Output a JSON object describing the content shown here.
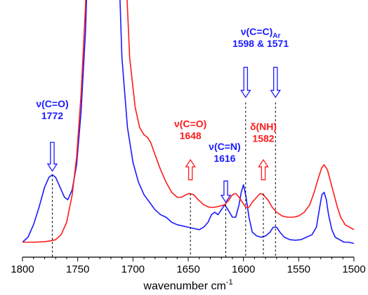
{
  "chart_data": {
    "type": "line",
    "title": "",
    "xlabel": "wavenumber cm",
    "xlabel_superscript": "-1",
    "ylabel": "",
    "xlim": [
      1800,
      1500
    ],
    "x_reversed": true,
    "y_axis_visible": false,
    "grid": false,
    "x_ticks": [
      1800,
      1750,
      1700,
      1650,
      1600,
      1550,
      1500
    ],
    "colors": {
      "blue": "#1a1aff",
      "red": "#ff1a1a",
      "axis": "#000000",
      "guide": "#000000"
    },
    "series": [
      {
        "color": "#1a1aff",
        "points": [
          [
            1800,
            0.06
          ],
          [
            1795,
            0.08
          ],
          [
            1790,
            0.13
          ],
          [
            1785,
            0.2
          ],
          [
            1780,
            0.28
          ],
          [
            1776,
            0.32
          ],
          [
            1773,
            0.33
          ],
          [
            1770,
            0.32
          ],
          [
            1766,
            0.28
          ],
          [
            1762,
            0.24
          ],
          [
            1759,
            0.23
          ],
          [
            1755,
            0.27
          ],
          [
            1751,
            0.37
          ],
          [
            1747,
            0.58
          ],
          [
            1743,
            0.9
          ],
          [
            1740,
            1.3
          ],
          [
            1738,
            1.8
          ],
          [
            1737,
            2.2
          ],
          [
            1737.6,
            3.0
          ],
          [
            1715.4,
            3.0
          ],
          [
            1715,
            2.1
          ],
          [
            1713,
            1.2
          ],
          [
            1710,
            0.8
          ],
          [
            1705,
            0.52
          ],
          [
            1700,
            0.38
          ],
          [
            1695,
            0.3
          ],
          [
            1690,
            0.25
          ],
          [
            1685,
            0.22
          ],
          [
            1680,
            0.19
          ],
          [
            1675,
            0.17
          ],
          [
            1670,
            0.16
          ],
          [
            1665,
            0.14
          ],
          [
            1660,
            0.13
          ],
          [
            1655,
            0.125
          ],
          [
            1650,
            0.12
          ],
          [
            1645,
            0.115
          ],
          [
            1640,
            0.11
          ],
          [
            1636,
            0.12
          ],
          [
            1632,
            0.14
          ],
          [
            1629,
            0.17
          ],
          [
            1626,
            0.18
          ],
          [
            1623,
            0.17
          ],
          [
            1620,
            0.19
          ],
          [
            1617,
            0.21
          ],
          [
            1614,
            0.19
          ],
          [
            1610,
            0.16
          ],
          [
            1607,
            0.16
          ],
          [
            1604,
            0.21
          ],
          [
            1602,
            0.26
          ],
          [
            1600,
            0.29
          ],
          [
            1598,
            0.25
          ],
          [
            1595,
            0.16
          ],
          [
            1592,
            0.1
          ],
          [
            1588,
            0.085
          ],
          [
            1584,
            0.08
          ],
          [
            1580,
            0.085
          ],
          [
            1576,
            0.1
          ],
          [
            1573,
            0.12
          ],
          [
            1570,
            0.12
          ],
          [
            1567,
            0.1
          ],
          [
            1563,
            0.08
          ],
          [
            1558,
            0.07
          ],
          [
            1553,
            0.068
          ],
          [
            1548,
            0.07
          ],
          [
            1543,
            0.08
          ],
          [
            1538,
            0.09
          ],
          [
            1534,
            0.12
          ],
          [
            1531,
            0.2
          ],
          [
            1529,
            0.25
          ],
          [
            1527,
            0.26
          ],
          [
            1525,
            0.23
          ],
          [
            1523,
            0.17
          ],
          [
            1520,
            0.11
          ],
          [
            1517,
            0.08
          ],
          [
            1513,
            0.07
          ],
          [
            1509,
            0.06
          ],
          [
            1505,
            0.06
          ],
          [
            1500,
            0.055
          ]
        ]
      },
      {
        "color": "#ff1a1a",
        "points": [
          [
            1800,
            0.06
          ],
          [
            1790,
            0.06
          ],
          [
            1780,
            0.062
          ],
          [
            1775,
            0.065
          ],
          [
            1770,
            0.07
          ],
          [
            1765,
            0.09
          ],
          [
            1760,
            0.14
          ],
          [
            1755,
            0.25
          ],
          [
            1751,
            0.4
          ],
          [
            1747,
            0.65
          ],
          [
            1743,
            1.0
          ],
          [
            1740,
            1.45
          ],
          [
            1738,
            1.9
          ],
          [
            1736,
            2.5
          ],
          [
            1735.5,
            3.0
          ],
          [
            1712.8,
            3.0
          ],
          [
            1712,
            2.5
          ],
          [
            1710,
            1.8
          ],
          [
            1707,
            1.2
          ],
          [
            1703,
            0.8
          ],
          [
            1698,
            0.6
          ],
          [
            1694,
            0.52
          ],
          [
            1690,
            0.49
          ],
          [
            1687,
            0.48
          ],
          [
            1684,
            0.46
          ],
          [
            1680,
            0.41
          ],
          [
            1675,
            0.35
          ],
          [
            1670,
            0.3
          ],
          [
            1665,
            0.26
          ],
          [
            1660,
            0.24
          ],
          [
            1656,
            0.24
          ],
          [
            1652,
            0.25
          ],
          [
            1649,
            0.255
          ],
          [
            1645,
            0.25
          ],
          [
            1641,
            0.23
          ],
          [
            1636,
            0.21
          ],
          [
            1631,
            0.2
          ],
          [
            1626,
            0.2
          ],
          [
            1621,
            0.205
          ],
          [
            1617,
            0.21
          ],
          [
            1613,
            0.23
          ],
          [
            1610,
            0.25
          ],
          [
            1607,
            0.255
          ],
          [
            1604,
            0.24
          ],
          [
            1601,
            0.22
          ],
          [
            1598,
            0.2
          ],
          [
            1595,
            0.2
          ],
          [
            1592,
            0.22
          ],
          [
            1588,
            0.24
          ],
          [
            1585,
            0.255
          ],
          [
            1582,
            0.25
          ],
          [
            1578,
            0.23
          ],
          [
            1574,
            0.2
          ],
          [
            1570,
            0.18
          ],
          [
            1565,
            0.165
          ],
          [
            1560,
            0.16
          ],
          [
            1555,
            0.16
          ],
          [
            1550,
            0.165
          ],
          [
            1545,
            0.18
          ],
          [
            1540,
            0.21
          ],
          [
            1536,
            0.26
          ],
          [
            1532,
            0.32
          ],
          [
            1529,
            0.36
          ],
          [
            1527,
            0.37
          ],
          [
            1524,
            0.35
          ],
          [
            1521,
            0.3
          ],
          [
            1518,
            0.25
          ],
          [
            1515,
            0.2
          ],
          [
            1512,
            0.16
          ],
          [
            1508,
            0.13
          ],
          [
            1504,
            0.12
          ],
          [
            1500,
            0.11
          ]
        ]
      }
    ],
    "guides": [
      {
        "x": 1773,
        "y_top": 0.33
      },
      {
        "x": 1648,
        "y_top": 0.255
      },
      {
        "x": 1616,
        "y_top": 0.21
      },
      {
        "x": 1598,
        "y_top": 0.62
      },
      {
        "x": 1582,
        "y_top": 0.255
      },
      {
        "x": 1571,
        "y_top": 0.62
      }
    ],
    "arrows": [
      {
        "x": 1773,
        "y_from": 0.46,
        "y_to": 0.345,
        "color": "#1a1aff",
        "direction": "down"
      },
      {
        "x": 1648,
        "y_from": 0.31,
        "y_to": 0.39,
        "color": "#ff1a1a",
        "direction": "up"
      },
      {
        "x": 1616,
        "y_from": 0.305,
        "y_to": 0.22,
        "color": "#1a1aff",
        "direction": "down"
      },
      {
        "x": 1598,
        "y_from": 0.76,
        "y_to": 0.64,
        "color": "#1a1aff",
        "direction": "down"
      },
      {
        "x": 1571,
        "y_from": 0.76,
        "y_to": 0.64,
        "color": "#1a1aff",
        "direction": "down"
      },
      {
        "x": 1582,
        "y_from": 0.31,
        "y_to": 0.39,
        "color": "#ff1a1a",
        "direction": "up"
      }
    ],
    "annotations": [
      {
        "name": "nu-co-blue",
        "lines": [
          "ν(C=O)",
          "1772"
        ],
        "x": 1773,
        "y": 0.6,
        "color": "#1a1aff"
      },
      {
        "name": "nu-co-red",
        "lines": [
          "ν(C=O)",
          "1648"
        ],
        "x": 1648,
        "y": 0.52,
        "color": "#ff1a1a"
      },
      {
        "name": "nu-cn",
        "lines": [
          "ν(C=N)",
          "1616"
        ],
        "x": 1617,
        "y": 0.43,
        "color": "#1a1aff"
      },
      {
        "name": "nu-cc",
        "lines": [
          "ν(C=C)",
          "1598 & 1571"
        ],
        "sub": "Ar",
        "x": 1584.5,
        "y": 0.89,
        "color": "#1a1aff"
      },
      {
        "name": "delta-nh",
        "lines": [
          "δ(NH)",
          "1582"
        ],
        "x": 1582,
        "y": 0.51,
        "color": "#ff1a1a"
      }
    ]
  }
}
